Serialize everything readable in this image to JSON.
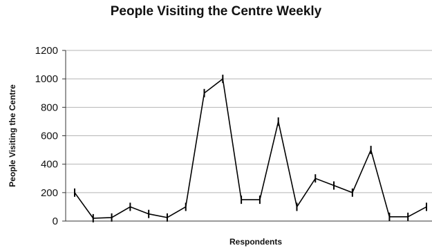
{
  "chart_data": {
    "type": "line",
    "title": "People Visiting the Centre Weekly",
    "xlabel": "Respondents",
    "ylabel": "People Visiting the Centre",
    "ylim": [
      0,
      1200
    ],
    "yticks": [
      0,
      200,
      400,
      600,
      800,
      1000,
      1200
    ],
    "grid": true,
    "line_color": "#000000",
    "series": [
      {
        "values": [
          200,
          20,
          25,
          100,
          50,
          25,
          100,
          900,
          1000,
          150,
          150,
          700,
          100,
          300,
          250,
          200,
          500,
          30,
          30,
          100
        ]
      }
    ]
  }
}
